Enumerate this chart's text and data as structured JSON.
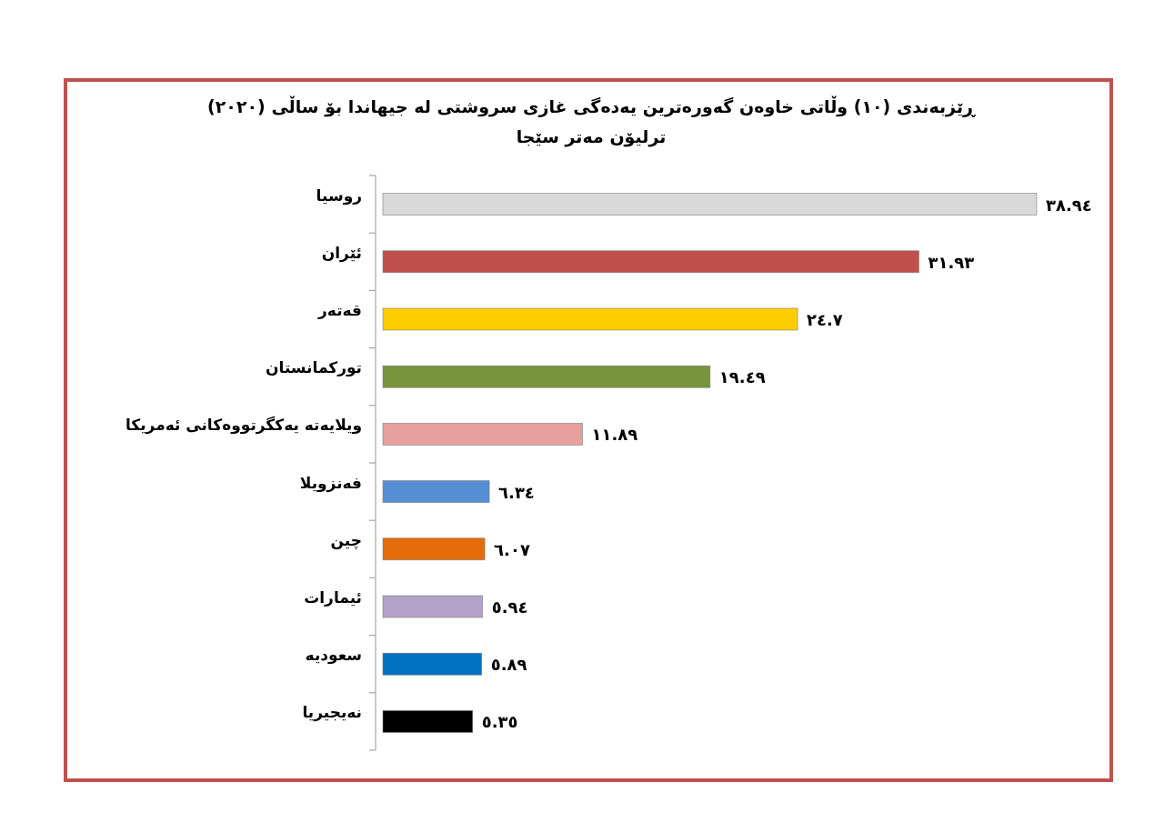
{
  "chart_data": {
    "type": "bar",
    "orientation": "horizontal",
    "title": "ڕێزبەندی (١٠) وڵاتی خاوەن گەورەترین یەدەگی غازی سروشتی لە جیهاندا بۆ ساڵی (٢٠٢٠)",
    "subtitle": "ترلیۆن مەتر سێجا",
    "categories": [
      "روسیا",
      "ئێران",
      "قەتەر",
      "تورکمانستان",
      "ویلایەتە یەکگرتووەکانی ئەمریکا",
      "فەنزویلا",
      "چین",
      "ئیمارات",
      "سعودیە",
      "نەیجیریا"
    ],
    "values": [
      38.94,
      31.93,
      24.7,
      19.49,
      11.89,
      6.34,
      6.07,
      5.94,
      5.89,
      5.35
    ],
    "colors": [
      "#d9d9d9",
      "#c0504d",
      "#ffcc00",
      "#77933c",
      "#e6a09e",
      "#558ed5",
      "#e46c0a",
      "#b3a2c7",
      "#0070c0",
      "#000000"
    ],
    "value_labels": [
      "٣٨.٩٤",
      "٣١.٩٣",
      "٢٤.٧",
      "١٩.٤٩",
      "١١.٨٩",
      "٦.٣٤",
      "٦.٠٧",
      "٥.٩٤",
      "٥.٨٩",
      "٥.٣٥"
    ]
  }
}
